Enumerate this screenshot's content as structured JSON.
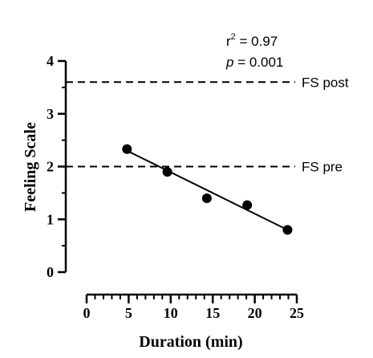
{
  "chart_data": {
    "type": "scatter",
    "xlabel": "Duration (min)",
    "ylabel": "Feeling Scale",
    "xlim": [
      0,
      25
    ],
    "ylim": [
      0,
      4
    ],
    "xticks": [
      "0",
      "5",
      "10",
      "15",
      "20",
      "25"
    ],
    "yticks": [
      "0",
      "1",
      "2",
      "3",
      "4"
    ],
    "points": [
      {
        "x": 4.8,
        "y": 2.33
      },
      {
        "x": 9.6,
        "y": 1.9
      },
      {
        "x": 14.3,
        "y": 1.4
      },
      {
        "x": 19.1,
        "y": 1.27
      },
      {
        "x": 23.9,
        "y": 0.8
      }
    ],
    "fit_line": {
      "x": [
        4.8,
        23.9
      ],
      "y": [
        2.3,
        0.8
      ]
    },
    "reference_lines": [
      {
        "label": "FS post",
        "y": 3.6
      },
      {
        "label": "FS pre",
        "y": 2.0
      }
    ],
    "stats": {
      "r2_prefix": "r",
      "r2_sup": "2",
      "r2_value": " = 0.97",
      "p_prefix": "p",
      "p_value": " = 0.001"
    }
  }
}
